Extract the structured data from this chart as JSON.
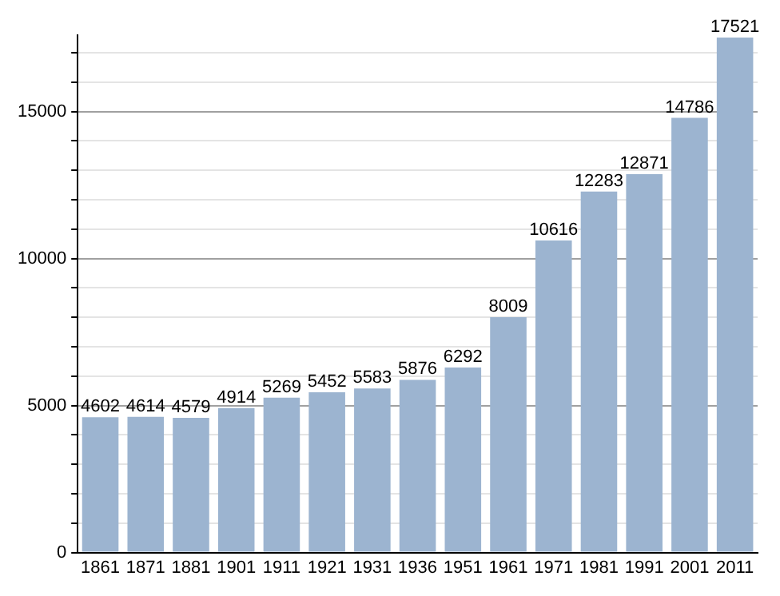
{
  "chart_data": {
    "type": "bar",
    "categories": [
      "1861",
      "1871",
      "1881",
      "1901",
      "1911",
      "1921",
      "1931",
      "1936",
      "1951",
      "1961",
      "1971",
      "1981",
      "1991",
      "2001",
      "2011"
    ],
    "values": [
      4602,
      4614,
      4579,
      4914,
      5269,
      5452,
      5583,
      5876,
      6292,
      8009,
      10616,
      12283,
      12871,
      14786,
      17521
    ],
    "color": "#9cb4d0",
    "ylim": [
      0,
      17600
    ],
    "yticks": [
      0,
      {
        "value": 1000,
        "label": null
      },
      {
        "value": 2000,
        "label": null
      },
      {
        "value": 3000,
        "label": null
      },
      {
        "value": 4000,
        "label": null
      },
      5000,
      {
        "value": 6000,
        "label": null
      },
      {
        "value": 7000,
        "label": null
      },
      {
        "value": 8000,
        "label": null
      },
      {
        "value": 9000,
        "label": null
      },
      10000,
      {
        "value": 11000,
        "label": null
      },
      {
        "value": 12000,
        "label": null
      },
      {
        "value": 13000,
        "label": null
      },
      {
        "value": 14000,
        "label": null
      },
      15000,
      {
        "value": 16000,
        "label": null
      },
      {
        "value": 17000,
        "label": null
      }
    ],
    "grid": "y",
    "legend": false,
    "data_labels": true
  }
}
